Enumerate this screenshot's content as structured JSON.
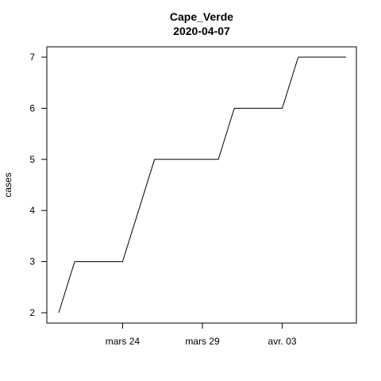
{
  "chart_data": {
    "type": "line",
    "title": "Cape_Verde",
    "subtitle": "2020-04-07",
    "xlabel": "",
    "ylabel": "cases",
    "x_tick_labels": [
      "mars 24",
      "mars 29",
      "avr. 03"
    ],
    "x_tick_dates": [
      "2020-03-24",
      "2020-03-29",
      "2020-04-03"
    ],
    "y_ticks": [
      2,
      3,
      4,
      5,
      6,
      7
    ],
    "ylim": [
      2,
      7
    ],
    "xlim": [
      "2020-03-20",
      "2020-04-07"
    ],
    "grid": false,
    "legend": "none",
    "line_color": "#000000",
    "series": [
      {
        "x": [
          "2020-03-20",
          "2020-03-21",
          "2020-03-22",
          "2020-03-23",
          "2020-03-24",
          "2020-03-25",
          "2020-03-26",
          "2020-03-27",
          "2020-03-28",
          "2020-03-29",
          "2020-03-30",
          "2020-03-31",
          "2020-04-01",
          "2020-04-02",
          "2020-04-03",
          "2020-04-04",
          "2020-04-05",
          "2020-04-06",
          "2020-04-07"
        ],
        "values": [
          2,
          3,
          3,
          3,
          3,
          4,
          5,
          5,
          5,
          5,
          5,
          6,
          6,
          6,
          6,
          7,
          7,
          7,
          7
        ]
      }
    ]
  }
}
